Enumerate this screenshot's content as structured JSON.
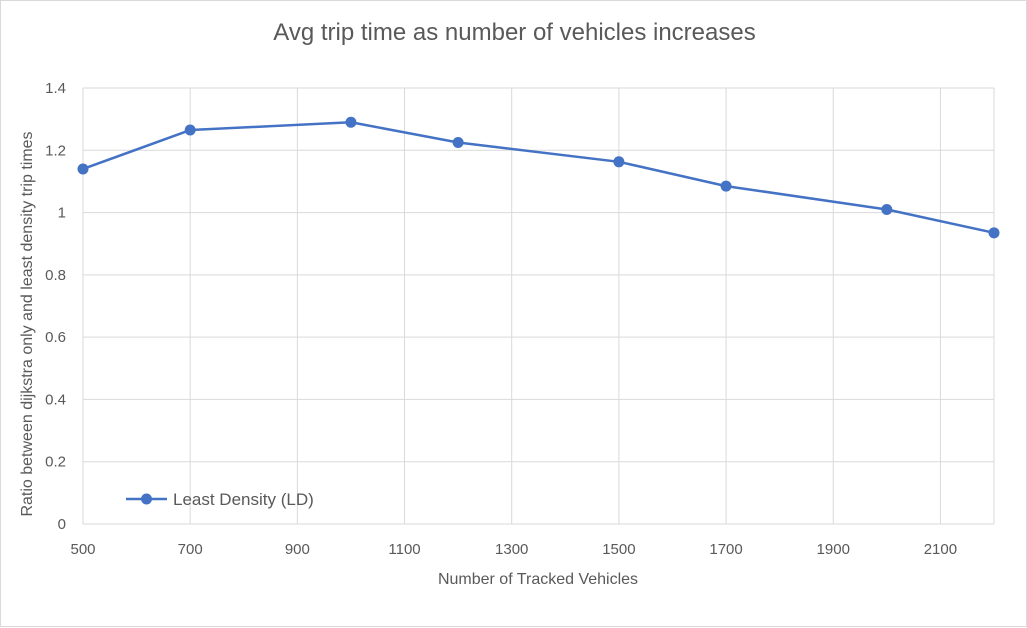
{
  "chart_data": {
    "type": "scatter",
    "title": "Avg trip time as number of vehicles increases",
    "xlabel": "Number of Tracked Vehicles",
    "ylabel": "Ratio between dijkstra only and least density trip times",
    "xlim": [
      500,
      2200
    ],
    "ylim": [
      0,
      1.4
    ],
    "x_ticks": [
      "500",
      "700",
      "900",
      "1100",
      "1300",
      "1500",
      "1700",
      "1900",
      "2100"
    ],
    "y_ticks": [
      "0",
      "0.2",
      "0.4",
      "0.6",
      "0.8",
      "1",
      "1.2",
      "1.4"
    ],
    "grid": true,
    "legend_position": "bottom-left",
    "series": [
      {
        "name": "Least Density (LD)",
        "color": "#4472c4",
        "x": [
          500,
          700,
          1000,
          1200,
          1500,
          1700,
          2000,
          2200
        ],
        "y": [
          1.14,
          1.265,
          1.29,
          1.225,
          1.163,
          1.085,
          1.01,
          0.935
        ]
      }
    ]
  }
}
